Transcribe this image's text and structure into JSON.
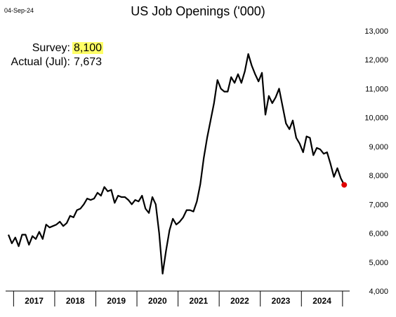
{
  "date_stamp": "04-Sep-24",
  "annotations": {
    "survey_label": "Survey:",
    "survey_value": "8,100",
    "actual_label": "Actual (Jul):",
    "actual_value": "7,673"
  },
  "colors": {
    "line": "#000000",
    "last_point": "#e00000",
    "highlight": "#ffff66"
  },
  "chart_data": {
    "type": "line",
    "title": "US Job Openings ('000)",
    "xlabel": "",
    "ylabel": "",
    "ylim": [
      4000,
      13000
    ],
    "y_ticks": [
      4000,
      5000,
      6000,
      7000,
      8000,
      9000,
      10000,
      11000,
      12000,
      13000
    ],
    "y_tick_labels": [
      "4,000",
      "5,000",
      "6,000",
      "7,000",
      "8,000",
      "9,000",
      "10,000",
      "11,000",
      "12,000",
      "13,000"
    ],
    "x_tick_labels": [
      "2017",
      "2018",
      "2019",
      "2020",
      "2021",
      "2022",
      "2023",
      "2024"
    ],
    "y_axis_side": "right",
    "grid": false,
    "series": [
      {
        "start": "2016-11",
        "values": [
          5950,
          5650,
          5850,
          5550,
          5950,
          5950,
          5600,
          5900,
          5800,
          6050,
          5800,
          6300,
          6200,
          6250,
          6300,
          6400,
          6250,
          6350,
          6600,
          6550,
          6800,
          6850,
          7000,
          7200,
          7150,
          7200,
          7400,
          7300,
          7600,
          7450,
          7500,
          7050,
          7300,
          7250,
          7250,
          7150,
          7000,
          7150,
          7100,
          7300,
          6850,
          6700,
          7250,
          7000,
          6000,
          4600,
          5400,
          6100,
          6500,
          6300,
          6400,
          6550,
          6800,
          6800,
          6750,
          7100,
          7700,
          8600,
          9300,
          9900,
          10500,
          11300,
          11000,
          10900,
          10900,
          11400,
          11200,
          11500,
          11200,
          11600,
          12200,
          11800,
          11500,
          11250,
          11550,
          10100,
          10750,
          10500,
          10700,
          11000,
          10400,
          9800,
          9600,
          9900,
          9300,
          9100,
          8800,
          9350,
          9300,
          8700,
          8950,
          8900,
          8750,
          8800,
          8400,
          7950,
          8250,
          7900,
          7673
        ]
      }
    ],
    "highlight_last_point": true
  }
}
